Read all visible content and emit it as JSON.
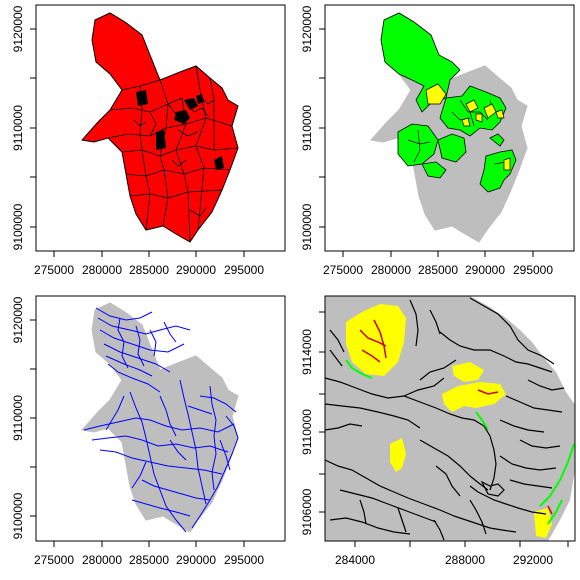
{
  "panels": [
    {
      "id": "top-left",
      "colors": {
        "fill": "#ff0000",
        "highlight": "#000000",
        "border": "#000000"
      },
      "x_ticks": [
        "275000",
        "280000",
        "285000",
        "290000",
        "295000"
      ],
      "y_ticks": [
        "9100000",
        "9110000",
        "9120000"
      ]
    },
    {
      "id": "top-right",
      "colors": {
        "background": "#bebebe",
        "zone": "#00ff00",
        "highlight": "#ffff00",
        "border": "#000000"
      },
      "x_ticks": [
        "275000",
        "280000",
        "285000",
        "290000",
        "295000"
      ],
      "y_ticks": [
        "9100000",
        "9110000",
        "9120000"
      ]
    },
    {
      "id": "bottom-left",
      "colors": {
        "background": "#bebebe",
        "rivers": "#0000ff"
      },
      "x_ticks": [
        "275000",
        "280000",
        "285000",
        "290000",
        "295000"
      ],
      "y_ticks": [
        "9100000",
        "9110000",
        "9120000"
      ]
    },
    {
      "id": "bottom-right",
      "colors": {
        "background": "#bebebe",
        "rivers": "#000000",
        "zone": "#ffff00",
        "riparian": "#00ff00",
        "highlight": "#ff0000"
      },
      "x_ticks": [
        "284000",
        "288000",
        "292000"
      ],
      "y_ticks": [
        "9106000",
        "9110000",
        "9114000"
      ]
    }
  ]
}
